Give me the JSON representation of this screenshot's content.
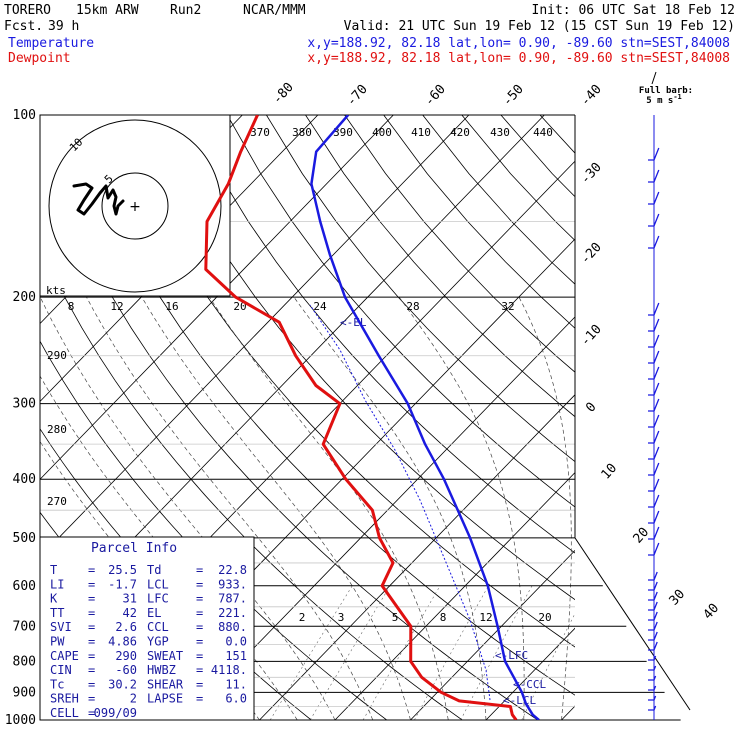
{
  "header": {
    "model": "TORERO",
    "grid": "15km ARW",
    "run": "Run2",
    "agency": "NCAR/MMM",
    "init": "Init: 06 UTC Sat 18 Feb 12",
    "fcst_label": "Fcst.",
    "fcst_value": "39 h",
    "valid": "Valid: 21 UTC Sun 19 Feb 12 (15 CST Sun 19 Feb 12)",
    "temp_label": "Temperature",
    "dew_label": "Dewpoint",
    "temp_loc": "x,y=188.92, 82.18   lat,lon=  0.90, -89.60  stn=SEST,84008",
    "dew_loc": "x,y=188.92, 82.18   lat,lon=  0.90, -89.60  stn=SEST,84008",
    "barb_title": "Full barb:",
    "barb_unit": "5 m s",
    "barb_unit_sup": "-1"
  },
  "colors": {
    "temperature": "#1a1ae0",
    "dewpoint": "#e01010",
    "info": "#1a1aa0",
    "grid": "#000000"
  },
  "hodograph": {
    "units": "kts",
    "ring_labels": [
      "5",
      "10"
    ]
  },
  "parcel_info": {
    "title": "Parcel Info",
    "rows": [
      [
        "T",
        "25.5",
        "Td",
        "22.8"
      ],
      [
        "LI",
        "-1.7",
        "LCL",
        "933."
      ],
      [
        "K",
        "31",
        "LFC",
        "787."
      ],
      [
        "TT",
        "42",
        "EL",
        "221."
      ],
      [
        "SVI",
        "2.6",
        "CCL",
        "880."
      ],
      [
        "PW",
        "4.86",
        "YGP",
        "0.0"
      ],
      [
        "CAPE",
        "290",
        "SWEAT",
        "151"
      ],
      [
        "CIN",
        "-60",
        "HWBZ",
        "4118."
      ],
      [
        "Tc",
        "30.2",
        "SHEAR",
        "11."
      ],
      [
        "SREH",
        "2",
        "LAPSE",
        "6.0"
      ],
      [
        "CELL",
        "099/09",
        "",
        ""
      ]
    ]
  },
  "chart_data": {
    "type": "skew-t",
    "pressure_levels": [
      100,
      200,
      300,
      400,
      500,
      600,
      700,
      800,
      900,
      1000
    ],
    "pressure_labels": [
      "100",
      "200",
      "300",
      "400",
      "500",
      "600",
      "700",
      "800",
      "900",
      "1000"
    ],
    "isotherm_labels": [
      "-80",
      "-70",
      "-60",
      "-50",
      "-40",
      "-30",
      "-20",
      "-10",
      "0",
      "10",
      "20",
      "30",
      "40"
    ],
    "theta_e_labels": [
      "370",
      "380",
      "390",
      "400",
      "410",
      "420",
      "430",
      "440"
    ],
    "theta_labels": [
      "290",
      "280",
      "270"
    ],
    "mixing_ratio_labels": [
      "8",
      "12",
      "16",
      "20",
      "24",
      "28",
      "32"
    ],
    "mixing_ratio_low_labels": [
      "2",
      "3",
      "5",
      "8",
      "12",
      "20"
    ],
    "level_markers": [
      "<-EL",
      "<-LFC",
      "<-CCL",
      "<-LCL"
    ],
    "temperature": [
      {
        "p": 1000,
        "t": 27.0
      },
      {
        "p": 980,
        "t": 25.5
      },
      {
        "p": 940,
        "t": 23.2
      },
      {
        "p": 900,
        "t": 21.2
      },
      {
        "p": 850,
        "t": 18.2
      },
      {
        "p": 800,
        "t": 15.0
      },
      {
        "p": 700,
        "t": 9.5
      },
      {
        "p": 600,
        "t": 3.0
      },
      {
        "p": 500,
        "t": -5.5
      },
      {
        "p": 400,
        "t": -16.5
      },
      {
        "p": 350,
        "t": -23.5
      },
      {
        "p": 300,
        "t": -31.0
      },
      {
        "p": 250,
        "t": -41.0
      },
      {
        "p": 200,
        "t": -53.0
      },
      {
        "p": 170,
        "t": -60.5
      },
      {
        "p": 150,
        "t": -66.0
      },
      {
        "p": 130,
        "t": -72.0
      },
      {
        "p": 115,
        "t": -75.5
      },
      {
        "p": 100,
        "t": -76.0
      }
    ],
    "dewpoint": [
      {
        "p": 1000,
        "t": 24.0
      },
      {
        "p": 980,
        "t": 22.8
      },
      {
        "p": 950,
        "t": 21.5
      },
      {
        "p": 930,
        "t": 14.0
      },
      {
        "p": 900,
        "t": 10.5
      },
      {
        "p": 850,
        "t": 6.0
      },
      {
        "p": 800,
        "t": 2.5
      },
      {
        "p": 700,
        "t": -2.0
      },
      {
        "p": 600,
        "t": -11.0
      },
      {
        "p": 550,
        "t": -12.5
      },
      {
        "p": 500,
        "t": -17.5
      },
      {
        "p": 450,
        "t": -22.0
      },
      {
        "p": 400,
        "t": -29.5
      },
      {
        "p": 350,
        "t": -37.0
      },
      {
        "p": 300,
        "t": -40.0
      },
      {
        "p": 280,
        "t": -45.5
      },
      {
        "p": 250,
        "t": -52.0
      },
      {
        "p": 220,
        "t": -58.5
      },
      {
        "p": 200,
        "t": -67.5
      },
      {
        "p": 180,
        "t": -75.0
      },
      {
        "p": 150,
        "t": -81.0
      },
      {
        "p": 130,
        "t": -83.0
      },
      {
        "p": 115,
        "t": -85.5
      },
      {
        "p": 100,
        "t": -88.0
      }
    ]
  }
}
